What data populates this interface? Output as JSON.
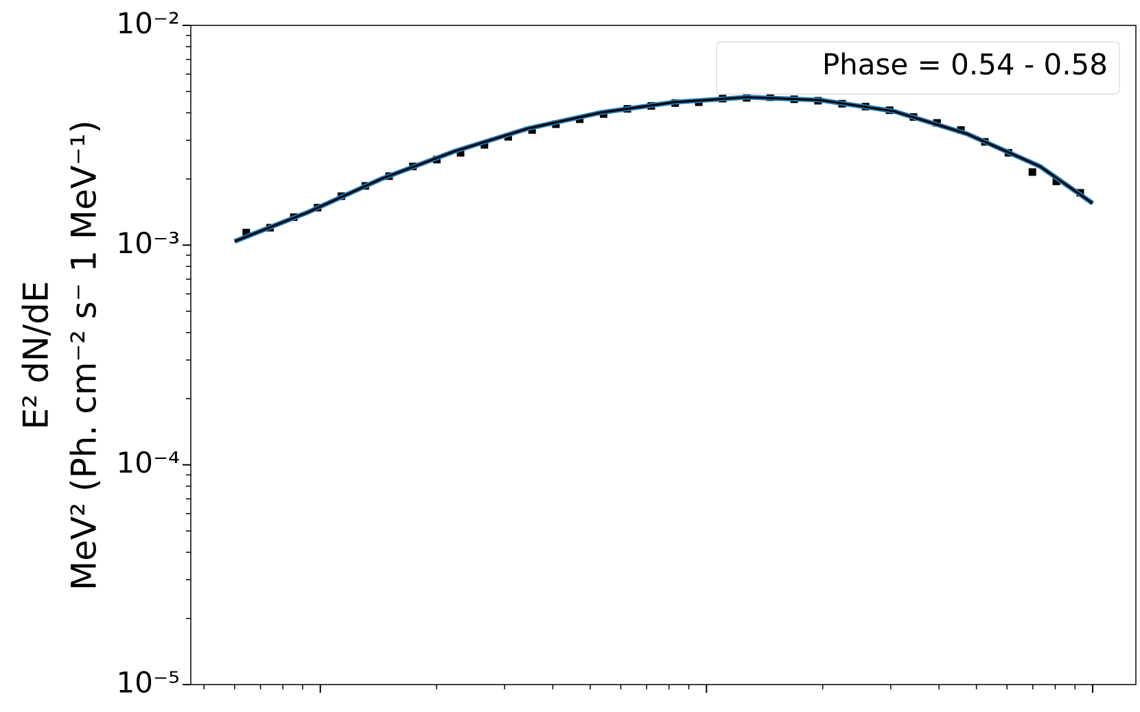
{
  "chart_data": {
    "type": "scatter",
    "ylabel": [
      "E² dN/dE",
      "MeV² (Ph. cm⁻² s⁻ 1 MeV⁻¹)"
    ],
    "x_scale": "log",
    "y_scale": "log",
    "xlim": [
      46.2,
      12940
    ],
    "xticks": [
      100,
      1000,
      10000
    ],
    "ylim": [
      1e-05,
      0.01
    ],
    "yticks": [
      {
        "value": 1e-05,
        "label": "10⁻⁵"
      },
      {
        "value": 0.0001,
        "label": "10⁻⁴"
      },
      {
        "value": 0.001,
        "label": "10⁻³"
      },
      {
        "value": 0.01,
        "label": "10⁻²"
      }
    ],
    "legend": "upper right",
    "series": [
      {
        "name": "Phase = 0.54 - 0.58",
        "color": "#000000",
        "marker": "square",
        "x": [
          64.3,
          74.1,
          85.4,
          98.4,
          113.4,
          130.8,
          150.7,
          173.7,
          200.3,
          230.8,
          266.1,
          306.7,
          353.5,
          407.4,
          469.6,
          541.5,
          623.7,
          719.5,
          829.8,
          955.0,
          1101,
          1271,
          1462,
          1687,
          1945,
          2244,
          2582,
          2979,
          3436,
          3954,
          4560,
          5260,
          6053,
          6982,
          8054,
          9290
        ],
        "values": [
          0.00114,
          0.0012,
          0.00134,
          0.00148,
          0.00167,
          0.00186,
          0.00206,
          0.00228,
          0.00245,
          0.00263,
          0.00286,
          0.00311,
          0.00334,
          0.00355,
          0.00374,
          0.00395,
          0.00417,
          0.0043,
          0.00443,
          0.00447,
          0.00464,
          0.00468,
          0.00471,
          0.00461,
          0.00454,
          0.0044,
          0.00427,
          0.00411,
          0.00383,
          0.0036,
          0.00334,
          0.00295,
          0.00263,
          0.00215,
          0.00195,
          0.00173
        ]
      },
      {
        "type": "line",
        "color": "#000000",
        "band_color": "#1f77b4",
        "x": [
          60.0,
          92.8,
          143.7,
          222.3,
          344,
          532.5,
          824,
          1275,
          1973,
          3053,
          4724,
          7311,
          10000
        ],
        "values": [
          0.00104,
          0.00141,
          0.002,
          0.00267,
          0.00339,
          0.00401,
          0.00447,
          0.00471,
          0.00457,
          0.00407,
          0.00321,
          0.00228,
          0.00155
        ]
      }
    ]
  }
}
